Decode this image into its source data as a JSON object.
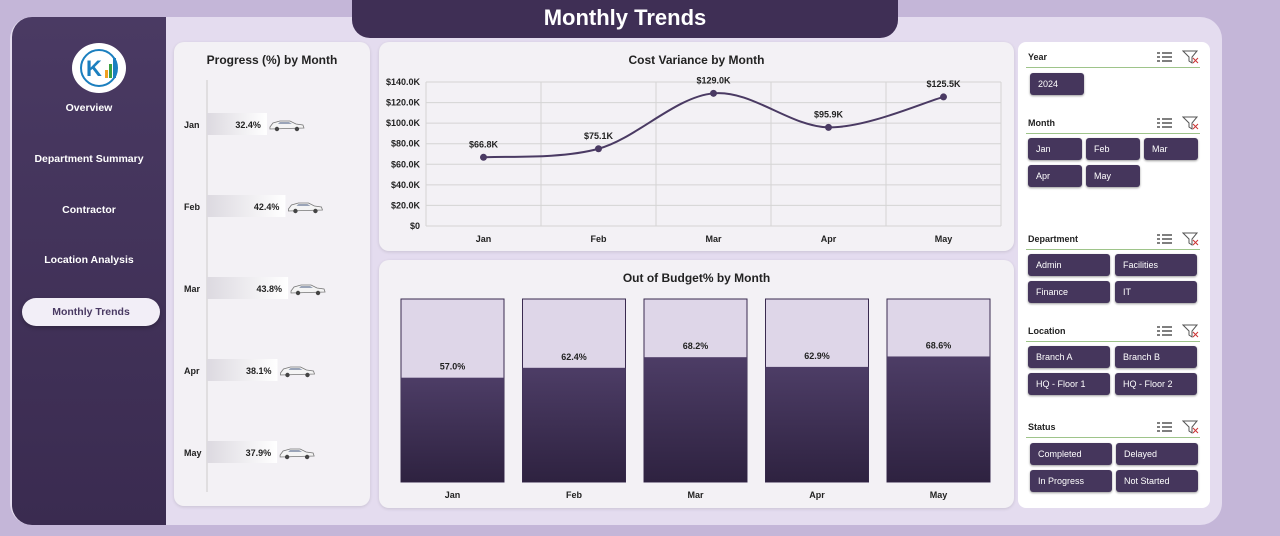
{
  "page": {
    "title": "Monthly Trends"
  },
  "sidebar": {
    "items": [
      {
        "label": "Overview",
        "active": false
      },
      {
        "label": "Department Summary",
        "active": false
      },
      {
        "label": "Contractor",
        "active": false
      },
      {
        "label": "Location Analysis",
        "active": false
      },
      {
        "label": "Monthly Trends",
        "active": true
      }
    ]
  },
  "colors": {
    "primary": "#3f2f55",
    "bar_dark": "#3a2b50",
    "bar_light": "#ded6e8",
    "line": "#4a3a63"
  },
  "chart_data": [
    {
      "type": "bar",
      "orientation": "horizontal",
      "title": "Progress (%) by Month",
      "categories": [
        "Jan",
        "Feb",
        "Mar",
        "Apr",
        "May"
      ],
      "values": [
        32.4,
        42.4,
        43.8,
        38.1,
        37.9
      ],
      "value_labels": [
        "32.4%",
        "42.4%",
        "43.8%",
        "38.1%",
        "37.9%"
      ],
      "marker_icon": "car-icon"
    },
    {
      "type": "line",
      "title": "Cost Variance by Month",
      "categories": [
        "Jan",
        "Feb",
        "Mar",
        "Apr",
        "May"
      ],
      "values": [
        66.8,
        75.1,
        129.0,
        95.9,
        125.5
      ],
      "value_labels": [
        "$66.8K",
        "$75.1K",
        "$129.0K",
        "$95.9K",
        "$125.5K"
      ],
      "y_ticks": [
        "$0",
        "$20.0K",
        "$40.0K",
        "$60.0K",
        "$80.0K",
        "$100.0K",
        "$120.0K",
        "$140.0K"
      ],
      "ylim": [
        0,
        140
      ],
      "grid": true,
      "smooth": true
    },
    {
      "type": "bar",
      "stacked": true,
      "title": "Out of Budget% by Month",
      "categories": [
        "Jan",
        "Feb",
        "Mar",
        "Apr",
        "May"
      ],
      "values": [
        57.0,
        62.4,
        68.2,
        62.9,
        68.6
      ],
      "value_labels": [
        "57.0%",
        "62.4%",
        "68.2%",
        "62.9%",
        "68.6%"
      ],
      "ylim": [
        0,
        100
      ]
    }
  ],
  "slicers": [
    {
      "label": "Year",
      "options": [
        "2024"
      ]
    },
    {
      "label": "Month",
      "options": [
        "Jan",
        "Feb",
        "Mar",
        "Apr",
        "May"
      ]
    },
    {
      "label": "Department",
      "options": [
        "Admin",
        "Facilities",
        "Finance",
        "IT"
      ]
    },
    {
      "label": "Location",
      "options": [
        "Branch A",
        "Branch B",
        "HQ - Floor 1",
        "HQ - Floor 2"
      ]
    },
    {
      "label": "Status",
      "options": [
        "Completed",
        "Delayed",
        "In Progress",
        "Not Started"
      ]
    }
  ],
  "icons": {
    "multiselect": "multi-select-icon",
    "clear_filter": "clear-filter-icon"
  }
}
